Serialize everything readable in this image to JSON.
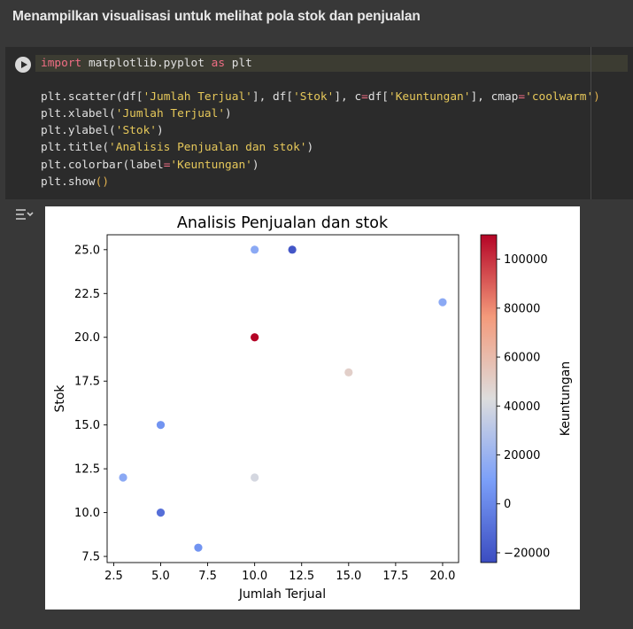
{
  "heading": "Menampilkan visualisasi untuk melihat pola stok dan penjualan",
  "code_lines": [
    [
      {
        "t": "import",
        "c": "kw"
      },
      {
        "t": " matplotlib.pyplot ",
        "c": ""
      },
      {
        "t": "as",
        "c": "kw"
      },
      {
        "t": " plt",
        "c": ""
      }
    ],
    [],
    [
      {
        "t": "plt.scatter(df[",
        "c": ""
      },
      {
        "t": "'Jumlah Terjual'",
        "c": "str"
      },
      {
        "t": "], df[",
        "c": ""
      },
      {
        "t": "'Stok'",
        "c": "str"
      },
      {
        "t": "], c",
        "c": ""
      },
      {
        "t": "=",
        "c": "kw"
      },
      {
        "t": "df[",
        "c": ""
      },
      {
        "t": "'Keuntungan'",
        "c": "str"
      },
      {
        "t": "], cmap",
        "c": ""
      },
      {
        "t": "=",
        "c": "kw"
      },
      {
        "t": "'coolwarm'",
        "c": "str"
      },
      {
        "t": ")",
        "c": "brk"
      }
    ],
    [
      {
        "t": "plt.xlabel(",
        "c": ""
      },
      {
        "t": "'Jumlah Terjual'",
        "c": "str"
      },
      {
        "t": ")",
        "c": ""
      }
    ],
    [
      {
        "t": "plt.ylabel(",
        "c": ""
      },
      {
        "t": "'Stok'",
        "c": "str"
      },
      {
        "t": ")",
        "c": ""
      }
    ],
    [
      {
        "t": "plt.title(",
        "c": ""
      },
      {
        "t": "'Analisis Penjualan dan stok'",
        "c": "str"
      },
      {
        "t": ")",
        "c": ""
      }
    ],
    [
      {
        "t": "plt.colorbar(label",
        "c": ""
      },
      {
        "t": "=",
        "c": "kw"
      },
      {
        "t": "'Keuntungan'",
        "c": "str"
      },
      {
        "t": ")",
        "c": ""
      }
    ],
    [
      {
        "t": "plt.show",
        "c": ""
      },
      {
        "t": "()",
        "c": "brk"
      }
    ]
  ],
  "chart_data": {
    "type": "scatter",
    "title": "Analisis Penjualan dan stok",
    "xlabel": "Jumlah Terjual",
    "ylabel": "Stok",
    "colorbar_label": "Keuntungan",
    "cmap": "coolwarm",
    "xlim": [
      2.15,
      20.85
    ],
    "ylim": [
      7.15,
      25.85
    ],
    "clim": [
      -24000,
      110000
    ],
    "xticks": [
      2.5,
      5.0,
      7.5,
      10.0,
      12.5,
      15.0,
      17.5,
      20.0
    ],
    "yticks": [
      7.5,
      10.0,
      12.5,
      15.0,
      17.5,
      20.0,
      22.5,
      25.0
    ],
    "cticks": [
      -20000,
      0,
      20000,
      40000,
      60000,
      80000,
      100000
    ],
    "points": [
      {
        "x": 10,
        "y": 25,
        "c": 15000
      },
      {
        "x": 12,
        "y": 25,
        "c": -20000
      },
      {
        "x": 20,
        "y": 22,
        "c": 15000
      },
      {
        "x": 10,
        "y": 20,
        "c": 110000
      },
      {
        "x": 15,
        "y": 18,
        "c": 50000
      },
      {
        "x": 5,
        "y": 15,
        "c": 5000
      },
      {
        "x": 3,
        "y": 12,
        "c": 15000
      },
      {
        "x": 10,
        "y": 12,
        "c": 40000
      },
      {
        "x": 5,
        "y": 10,
        "c": -10000
      },
      {
        "x": 7,
        "y": 8,
        "c": 5000
      }
    ]
  }
}
